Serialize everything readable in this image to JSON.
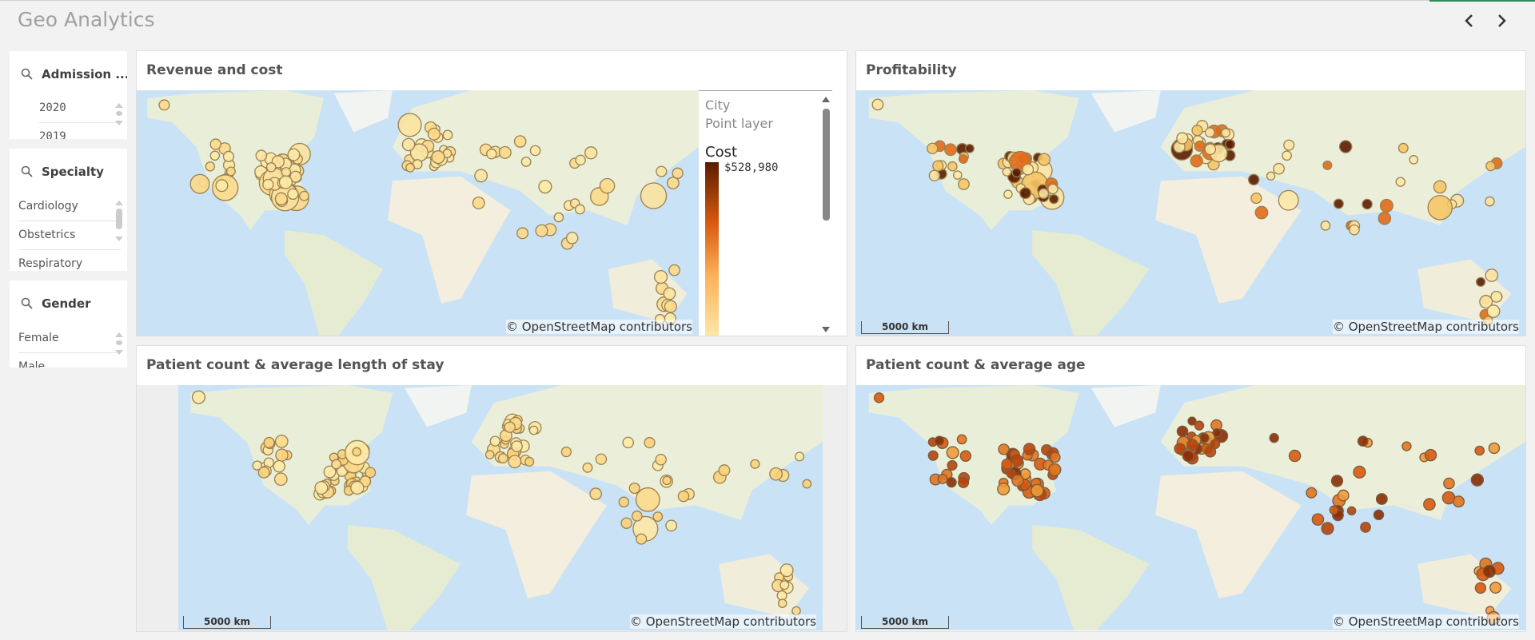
{
  "header": {
    "title": "Geo Analytics"
  },
  "filters": [
    {
      "title": "Admission ...",
      "items": [
        "2020",
        "2019"
      ]
    },
    {
      "title": "Specialty",
      "items": [
        "Cardiology",
        "Obstetrics",
        "Respiratory"
      ]
    },
    {
      "title": "Gender",
      "items": [
        "Female",
        "Male"
      ]
    }
  ],
  "panels": [
    {
      "title": "Revenue and cost",
      "attribution": "© OpenStreetMap contributors",
      "legend": {
        "layer": "City",
        "layer_type": "Point layer",
        "measure": "Cost",
        "max_label": "$528,980"
      }
    },
    {
      "title": "Profitability",
      "scale": "5000 km",
      "attribution": "© OpenStreetMap contributors"
    },
    {
      "title": "Patient count & average length of stay",
      "scale": "5000 km",
      "attribution": "© OpenStreetMap contributors"
    },
    {
      "title": "Patient count & average age",
      "scale": "5000 km",
      "attribution": "© OpenStreetMap contributors"
    }
  ]
}
